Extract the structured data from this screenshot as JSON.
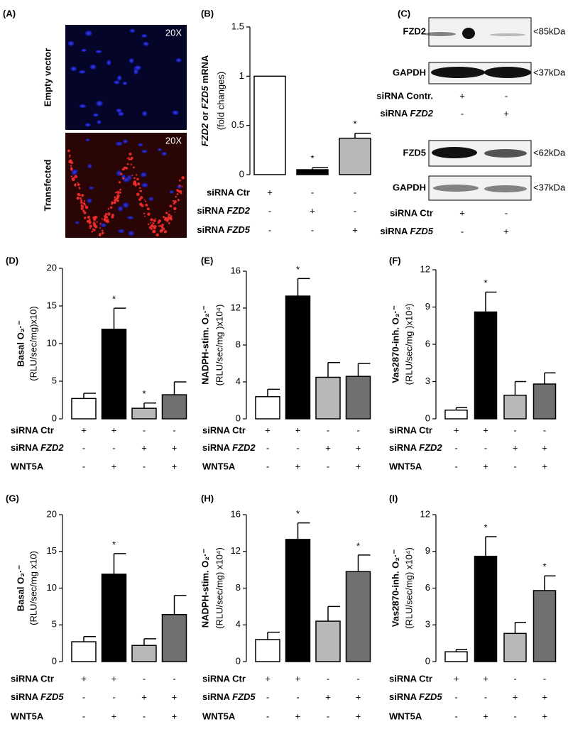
{
  "panel_a": {
    "label": "(A)",
    "rows": [
      {
        "name": "Empty vector",
        "magnification": "20X"
      },
      {
        "name": "Transfected",
        "magnification": "20X"
      }
    ]
  },
  "panel_c": {
    "label": "(C)",
    "blocks": [
      {
        "blots": [
          {
            "name": "FZD2",
            "size": "<85kDa"
          },
          {
            "name": "GAPDH",
            "size": "<37kDa"
          }
        ],
        "conditions": [
          {
            "label": "siRNA Contr.",
            "marks": [
              "+",
              "-"
            ]
          },
          {
            "label": "siRNA FZD2",
            "marks": [
              "-",
              "+"
            ]
          }
        ]
      },
      {
        "blots": [
          {
            "name": "FZD5",
            "size": "<62kDa"
          },
          {
            "name": "GAPDH",
            "size": "<37kDa"
          }
        ],
        "conditions": [
          {
            "label": "siRNA Ctr",
            "marks": [
              "+",
              "-"
            ]
          },
          {
            "label": "siRNA FZD5",
            "marks": [
              "-",
              "+"
            ]
          }
        ]
      }
    ]
  },
  "chart_data": [
    {
      "type": "bar",
      "label": "(B)",
      "ylabel": [
        "FZD2 or FZD5 mRNA",
        "(fold changes)"
      ],
      "ylim": [
        0,
        1.5
      ],
      "yticks": [
        0,
        0.5,
        1,
        1.5
      ],
      "values": [
        1.0,
        0.05,
        0.37
      ],
      "errors": [
        0,
        0.02,
        0.05
      ],
      "annotations": [
        null,
        "*",
        "*"
      ],
      "colors": [
        "#ffffff",
        "#000000",
        "#b8b8b8"
      ],
      "conditions": [
        {
          "label": "siRNA Ctr",
          "marks": [
            "+",
            "-",
            "-"
          ]
        },
        {
          "label": "siRNA FZD2",
          "marks": [
            "-",
            "+",
            "-"
          ]
        },
        {
          "label": "siRNA FZD5",
          "marks": [
            "-",
            "-",
            "+"
          ]
        }
      ]
    },
    {
      "type": "bar",
      "label": "(D)",
      "ylabel": [
        "Basal O₂·⁻",
        "(RLU/sec/mg)x10)"
      ],
      "ylim": [
        0,
        20
      ],
      "yticks": [
        0,
        5,
        10,
        15,
        20
      ],
      "values": [
        2.7,
        11.9,
        1.4,
        3.2
      ],
      "errors": [
        0.7,
        2.8,
        0.7,
        1.7
      ],
      "annotations": [
        null,
        "*",
        "*",
        null
      ],
      "colors": [
        "#ffffff",
        "#000000",
        "#b8b8b8",
        "#707070"
      ],
      "conditions": [
        {
          "label": "siRNA Ctr",
          "marks": [
            "+",
            "+",
            "-",
            "-"
          ]
        },
        {
          "label": "siRNA FZD2",
          "marks": [
            "-",
            "-",
            "+",
            "+"
          ]
        },
        {
          "label": "WNT5A",
          "marks": [
            "-",
            "+",
            "-",
            "+"
          ]
        }
      ]
    },
    {
      "type": "bar",
      "label": "(E)",
      "ylabel": [
        "NADPH-stim. O₂·⁻",
        "(RLU/sec/mg )x10⁴)"
      ],
      "ylim": [
        0,
        16
      ],
      "yticks": [
        0,
        4,
        8,
        12,
        16
      ],
      "values": [
        2.4,
        13.3,
        4.5,
        4.6
      ],
      "errors": [
        0.8,
        1.9,
        1.6,
        1.4
      ],
      "annotations": [
        null,
        "*",
        null,
        null
      ],
      "colors": [
        "#ffffff",
        "#000000",
        "#b8b8b8",
        "#707070"
      ],
      "conditions": [
        {
          "label": "siRNA Ctr",
          "marks": [
            "+",
            "+",
            "-",
            "-"
          ]
        },
        {
          "label": "siRNA FZD2",
          "marks": [
            "-",
            "-",
            "+",
            "+"
          ]
        },
        {
          "label": "WNT5A",
          "marks": [
            "-",
            "+",
            "-",
            "+"
          ]
        }
      ]
    },
    {
      "type": "bar",
      "label": "(F)",
      "ylabel": [
        "Vas2870-inh. O₂·⁻",
        "(RLU/sec/mg )x10⁴)"
      ],
      "ylim": [
        0,
        12
      ],
      "yticks": [
        0,
        3,
        6,
        9,
        12
      ],
      "values": [
        0.7,
        8.6,
        1.9,
        2.8
      ],
      "errors": [
        0.2,
        1.6,
        1.1,
        0.9
      ],
      "annotations": [
        null,
        "*",
        null,
        null
      ],
      "colors": [
        "#ffffff",
        "#000000",
        "#b8b8b8",
        "#707070"
      ],
      "conditions": [
        {
          "label": "siRNA Ctr",
          "marks": [
            "+",
            "+",
            "-",
            "-"
          ]
        },
        {
          "label": "siRNA FZD2",
          "marks": [
            "-",
            "-",
            "+",
            "+"
          ]
        },
        {
          "label": "WNT5A",
          "marks": [
            "-",
            "+",
            "-",
            "+"
          ]
        }
      ]
    },
    {
      "type": "bar",
      "label": "(G)",
      "ylabel": [
        "Basal O₂·⁻",
        "(RLU/sec/mg x10)"
      ],
      "ylim": [
        0,
        20
      ],
      "yticks": [
        0,
        5,
        10,
        15,
        20
      ],
      "values": [
        2.7,
        11.9,
        2.2,
        6.4
      ],
      "errors": [
        0.7,
        2.8,
        0.9,
        2.6
      ],
      "annotations": [
        null,
        "*",
        null,
        null
      ],
      "colors": [
        "#ffffff",
        "#000000",
        "#b8b8b8",
        "#707070"
      ],
      "conditions": [
        {
          "label": "siRNA Ctr",
          "marks": [
            "+",
            "+",
            "-",
            "-"
          ]
        },
        {
          "label": "siRNA FZD5",
          "marks": [
            "-",
            "-",
            "+",
            "+"
          ]
        },
        {
          "label": "WNT5A",
          "marks": [
            "-",
            "+",
            "-",
            "+"
          ]
        }
      ]
    },
    {
      "type": "bar",
      "label": "(H)",
      "ylabel": [
        "NADPH-stim. O₂·⁻",
        "(RLU/sec/mg) x10⁴)"
      ],
      "ylim": [
        0,
        16
      ],
      "yticks": [
        0,
        4,
        8,
        12,
        16
      ],
      "values": [
        2.4,
        13.3,
        4.4,
        9.8
      ],
      "errors": [
        0.8,
        1.8,
        1.6,
        1.8
      ],
      "annotations": [
        null,
        "*",
        null,
        "*"
      ],
      "colors": [
        "#ffffff",
        "#000000",
        "#b8b8b8",
        "#707070"
      ],
      "conditions": [
        {
          "label": "siRNA Ctr",
          "marks": [
            "+",
            "+",
            "-",
            "-"
          ]
        },
        {
          "label": "siRNA FZD5",
          "marks": [
            "-",
            "-",
            "+",
            "+"
          ]
        },
        {
          "label": "WNT5A",
          "marks": [
            "-",
            "+",
            "-",
            "+"
          ]
        }
      ]
    },
    {
      "type": "bar",
      "label": "(I)",
      "ylabel": [
        "Vas2870-inh. O₂·⁻",
        "(RLU/sec/mg) x10⁴)"
      ],
      "ylim": [
        0,
        12
      ],
      "yticks": [
        0,
        3,
        6,
        9,
        12
      ],
      "values": [
        0.8,
        8.6,
        2.3,
        5.8
      ],
      "errors": [
        0.2,
        1.6,
        0.9,
        1.2
      ],
      "annotations": [
        null,
        "*",
        null,
        "*"
      ],
      "colors": [
        "#ffffff",
        "#000000",
        "#b8b8b8",
        "#707070"
      ],
      "conditions": [
        {
          "label": "siRNA Ctr",
          "marks": [
            "+",
            "+",
            "-",
            "-"
          ]
        },
        {
          "label": "siRNA FZD5",
          "marks": [
            "-",
            "-",
            "+",
            "+"
          ]
        },
        {
          "label": "WNT5A",
          "marks": [
            "-",
            "+",
            "-",
            "+"
          ]
        }
      ]
    }
  ]
}
